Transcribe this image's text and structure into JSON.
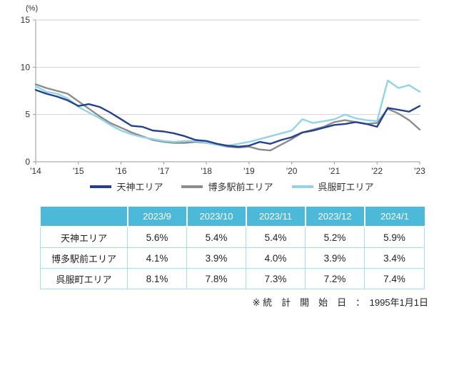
{
  "chart_data": {
    "type": "line",
    "title": "",
    "xlabel": "",
    "ylabel": "(%)",
    "ylim": [
      0,
      15
    ],
    "yticks": [
      0,
      5,
      10,
      15
    ],
    "xticks": [
      "'14",
      "'15",
      "'16",
      "'17",
      "'18",
      "'19",
      "'20",
      "'21",
      "'22",
      "'23"
    ],
    "x_range": [
      2014,
      2023
    ],
    "grid": "horizontal",
    "legend_position": "bottom",
    "x": [
      2014,
      2014.25,
      2014.5,
      2014.75,
      2015,
      2015.25,
      2015.5,
      2015.75,
      2016,
      2016.25,
      2016.5,
      2016.75,
      2017,
      2017.25,
      2017.5,
      2017.75,
      2018,
      2018.25,
      2018.5,
      2018.75,
      2019,
      2019.25,
      2019.5,
      2019.75,
      2020,
      2020.25,
      2020.5,
      2020.75,
      2021,
      2021.25,
      2021.5,
      2021.75,
      2022,
      2022.25,
      2022.5,
      2022.75,
      2023
    ],
    "series": [
      {
        "name": "天神エリア",
        "color": "#24418e",
        "values": [
          7.6,
          7.2,
          6.9,
          6.5,
          5.9,
          6.1,
          5.8,
          5.2,
          4.5,
          3.8,
          3.7,
          3.3,
          3.2,
          3.0,
          2.7,
          2.3,
          2.2,
          1.9,
          1.7,
          1.6,
          1.7,
          2.1,
          1.9,
          2.3,
          2.6,
          3.1,
          3.3,
          3.6,
          3.9,
          4.0,
          4.2,
          4.0,
          3.7,
          5.7,
          5.5,
          5.3,
          5.9
        ]
      },
      {
        "name": "博多駅前エリア",
        "color": "#8c8c8c",
        "values": [
          8.2,
          7.8,
          7.5,
          7.2,
          6.4,
          5.6,
          4.8,
          4.1,
          3.6,
          3.1,
          2.7,
          2.3,
          2.1,
          2.0,
          2.0,
          2.1,
          2.0,
          1.8,
          1.6,
          1.5,
          1.6,
          1.3,
          1.2,
          1.8,
          2.4,
          3.1,
          3.4,
          3.7,
          4.2,
          4.4,
          4.2,
          4.0,
          4.1,
          5.6,
          5.1,
          4.4,
          3.4
        ]
      },
      {
        "name": "呉服町エリア",
        "color": "#92d3e8",
        "values": [
          8.0,
          7.4,
          7.2,
          6.7,
          5.8,
          5.2,
          4.6,
          3.9,
          3.3,
          2.9,
          2.6,
          2.4,
          2.2,
          2.1,
          2.2,
          2.2,
          2.0,
          1.8,
          1.7,
          1.9,
          2.1,
          2.4,
          2.7,
          3.0,
          3.3,
          4.5,
          4.1,
          4.3,
          4.5,
          5.0,
          4.6,
          4.4,
          4.3,
          8.6,
          7.8,
          8.1,
          7.4
        ]
      }
    ]
  },
  "table": {
    "columns": [
      "2023/9",
      "2023/10",
      "2023/11",
      "2023/12",
      "2024/1"
    ],
    "rows": [
      {
        "label": "天神エリア",
        "values": [
          "5.6%",
          "5.4%",
          "5.4%",
          "5.2%",
          "5.9%"
        ]
      },
      {
        "label": "博多駅前エリア",
        "values": [
          "4.1%",
          "3.9%",
          "4.0%",
          "3.9%",
          "3.4%"
        ]
      },
      {
        "label": "呉服町エリア",
        "values": [
          "8.1%",
          "7.8%",
          "7.3%",
          "7.2%",
          "7.4%"
        ]
      }
    ],
    "header_bg": "#4cb9d9",
    "border_color": "#9fdfef"
  },
  "footnote": "※ 統　計　開　始　日　：　1995年1月1日"
}
